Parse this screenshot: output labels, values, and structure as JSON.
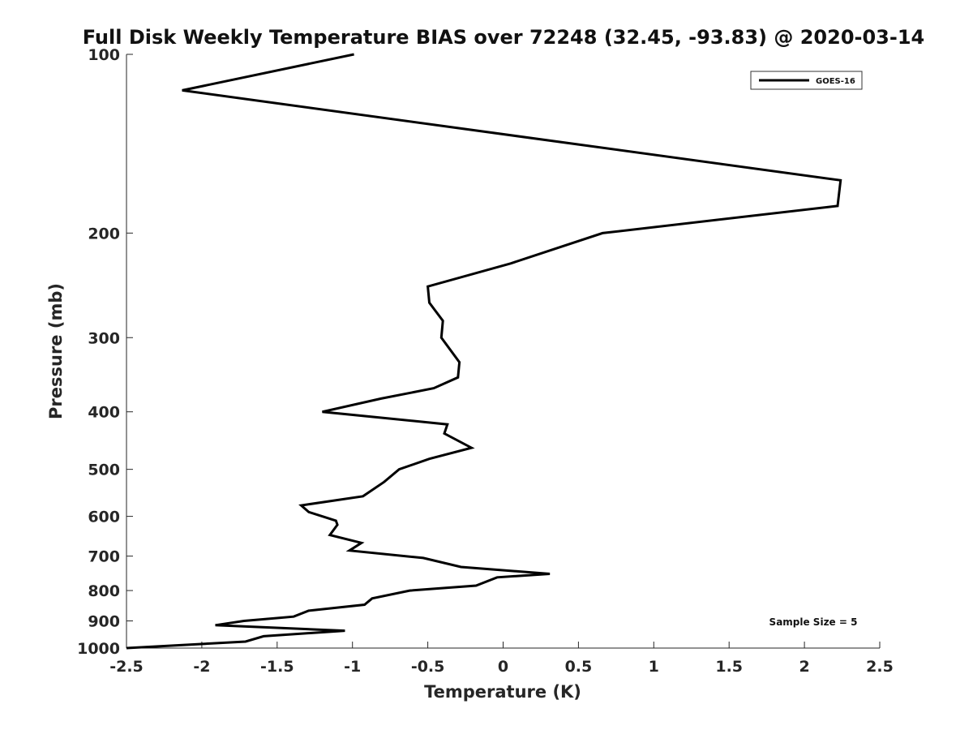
{
  "chart_data": {
    "type": "line",
    "title": "Full Disk Weekly Temperature BIAS over 72248 (32.45, -93.83) @ 2020-03-14",
    "xlabel": "Temperature (K)",
    "ylabel": "Pressure (mb)",
    "xlim": [
      -2.5,
      2.5
    ],
    "ylim": [
      100,
      1000
    ],
    "y_scale": "log",
    "y_reversed": true,
    "x_ticks": [
      "-2.5",
      "-2",
      "-1.5",
      "-1",
      "-0.5",
      "0",
      "0.5",
      "1",
      "1.5",
      "2",
      "2.5"
    ],
    "y_ticks": [
      "100",
      "200",
      "300",
      "400",
      "500",
      "600",
      "700",
      "800",
      "900",
      "1000"
    ],
    "grid": false,
    "legend_position": "top-right",
    "series": [
      {
        "name": "GOES-16",
        "color": "#000000",
        "x": [
          -0.99,
          -2.13,
          2.24,
          2.22,
          0.66,
          0.05,
          -0.5,
          -0.49,
          -0.4,
          -0.41,
          -0.29,
          -0.3,
          -0.46,
          -0.81,
          -1.2,
          -0.37,
          -0.39,
          -0.21,
          -0.49,
          -0.69,
          -0.79,
          -0.93,
          -1.34,
          -1.29,
          -1.11,
          -1.1,
          -1.15,
          -0.94,
          -1.02,
          -0.53,
          -0.28,
          0.31,
          -0.04,
          -0.18,
          -0.62,
          -0.87,
          -0.92,
          -1.29,
          -1.39,
          -1.72,
          -1.91,
          -1.05,
          -1.59,
          -1.71,
          -2.5
        ],
        "y": [
          100,
          115,
          163,
          180,
          200,
          225,
          246,
          262,
          281,
          300,
          330,
          350,
          365,
          380,
          400,
          420,
          435,
          460,
          480,
          500,
          525,
          555,
          575,
          590,
          610,
          620,
          645,
          665,
          685,
          705,
          730,
          750,
          760,
          785,
          800,
          825,
          845,
          865,
          885,
          900,
          915,
          935,
          955,
          975,
          1000
        ]
      }
    ],
    "annotations": [
      "Sample Size = 5"
    ]
  }
}
